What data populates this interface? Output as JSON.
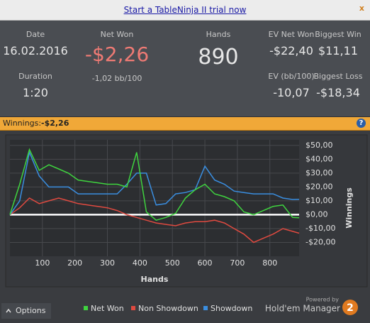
{
  "banner": {
    "link": "Start a TableNinja II trial now",
    "close": "x"
  },
  "stats": {
    "date": {
      "label": "Date",
      "value": "16.02.2016"
    },
    "duration": {
      "label": "Duration",
      "value": "1:20"
    },
    "net_won": {
      "label": "Net Won",
      "value": "-$2,26",
      "sub": "-1,02 bb/100"
    },
    "hands": {
      "label": "Hands",
      "value": "890"
    },
    "ev_net_won": {
      "label": "EV Net Won",
      "value": "-$22,40"
    },
    "biggest_win": {
      "label": "Biggest Win",
      "value": "$11,11"
    },
    "ev_bb100": {
      "label": "EV (bb/100)",
      "value": "-10,07"
    },
    "biggest_loss": {
      "label": "Biggest Loss",
      "value": "-$18,34"
    }
  },
  "winnings_bar": {
    "label": "Winnings:",
    "value": "-$2,26",
    "help": "?"
  },
  "chart_data": {
    "type": "line",
    "xlabel": "Hands",
    "ylabel": "Winnings",
    "x": [
      0,
      30,
      60,
      90,
      120,
      150,
      180,
      210,
      240,
      270,
      300,
      330,
      360,
      390,
      420,
      450,
      480,
      510,
      540,
      570,
      600,
      630,
      660,
      690,
      720,
      750,
      780,
      810,
      840,
      870,
      890
    ],
    "xlim": [
      0,
      890
    ],
    "xticks": [
      100,
      200,
      300,
      400,
      500,
      600,
      700,
      800
    ],
    "ylim": [
      -30,
      54
    ],
    "yticks": [
      {
        "value": 50,
        "label": "$50,00"
      },
      {
        "value": 40,
        "label": "$40,00"
      },
      {
        "value": 30,
        "label": "$30,00"
      },
      {
        "value": 20,
        "label": "$20,00"
      },
      {
        "value": 10,
        "label": "$10,00"
      },
      {
        "value": 0,
        "label": "$0,00"
      },
      {
        "value": -10,
        "label": "-$10,00"
      },
      {
        "value": -20,
        "label": "-$20,00"
      }
    ],
    "grid": true,
    "series": [
      {
        "name": "Net Won",
        "color": "#3fd43f",
        "values": [
          0,
          22,
          47,
          32,
          36,
          33,
          30,
          25,
          24,
          23,
          22,
          22,
          20,
          45,
          2,
          -4,
          -2,
          1,
          12,
          18,
          22,
          15,
          13,
          10,
          2,
          0,
          3,
          6,
          7,
          -2,
          -2.26
        ]
      },
      {
        "name": "Non Showdown",
        "color": "#e04a40",
        "values": [
          0,
          5,
          12,
          8,
          10,
          12,
          10,
          8,
          7,
          6,
          5,
          3,
          0,
          -2,
          -4,
          -6,
          -7,
          -8,
          -6,
          -5,
          -5,
          -4,
          -6,
          -10,
          -14,
          -20,
          -17,
          -14,
          -10,
          -12,
          -13.37
        ]
      },
      {
        "name": "Showdown",
        "color": "#3a8ee0",
        "values": [
          0,
          10,
          45,
          28,
          20,
          20,
          20,
          15,
          15,
          15,
          15,
          15,
          22,
          30,
          30,
          7,
          8,
          15,
          16,
          18,
          35,
          25,
          22,
          17,
          16,
          15,
          15,
          15,
          12,
          11,
          11.11
        ]
      }
    ]
  },
  "footer": {
    "options": "Options",
    "powered_by": "Powered by",
    "brand": "Hold'em Manager",
    "brand_badge": "2"
  }
}
